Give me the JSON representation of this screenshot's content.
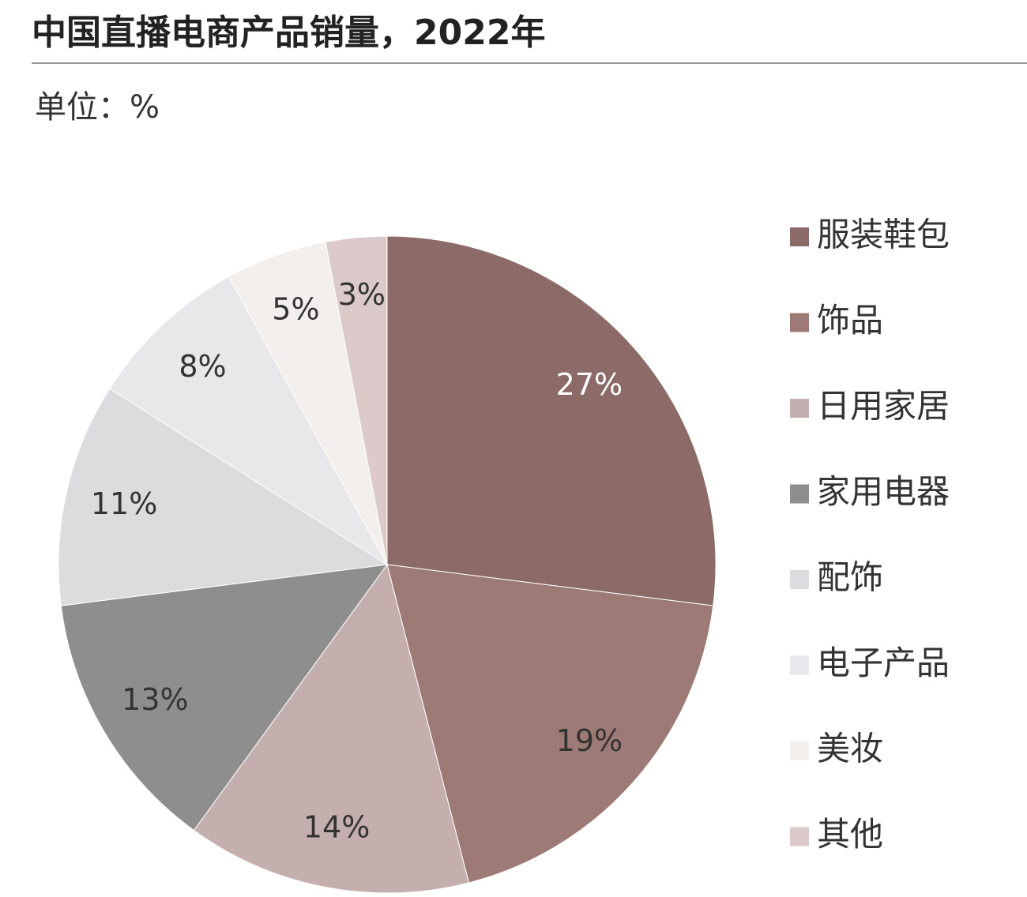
{
  "chart_data": {
    "type": "pie",
    "title": "中国直播电商产品销量，2022年",
    "subtitle": "单位：%",
    "categories": [
      "服装鞋包",
      "饰品",
      "日用家居",
      "家用电器",
      "配饰",
      "电子产品",
      "美妆",
      "其他"
    ],
    "values": [
      27,
      19,
      14,
      13,
      11,
      8,
      5,
      3
    ],
    "value_labels": [
      "27%",
      "19%",
      "14%",
      "13%",
      "11%",
      "8%",
      "5%",
      "3%"
    ],
    "colors": [
      "#8b6a67",
      "#9d7a76",
      "#c5afae",
      "#8e8e8e",
      "#dcdcde",
      "#e8e8ea",
      "#f3efec",
      "#dccaca"
    ],
    "legend": "right"
  }
}
